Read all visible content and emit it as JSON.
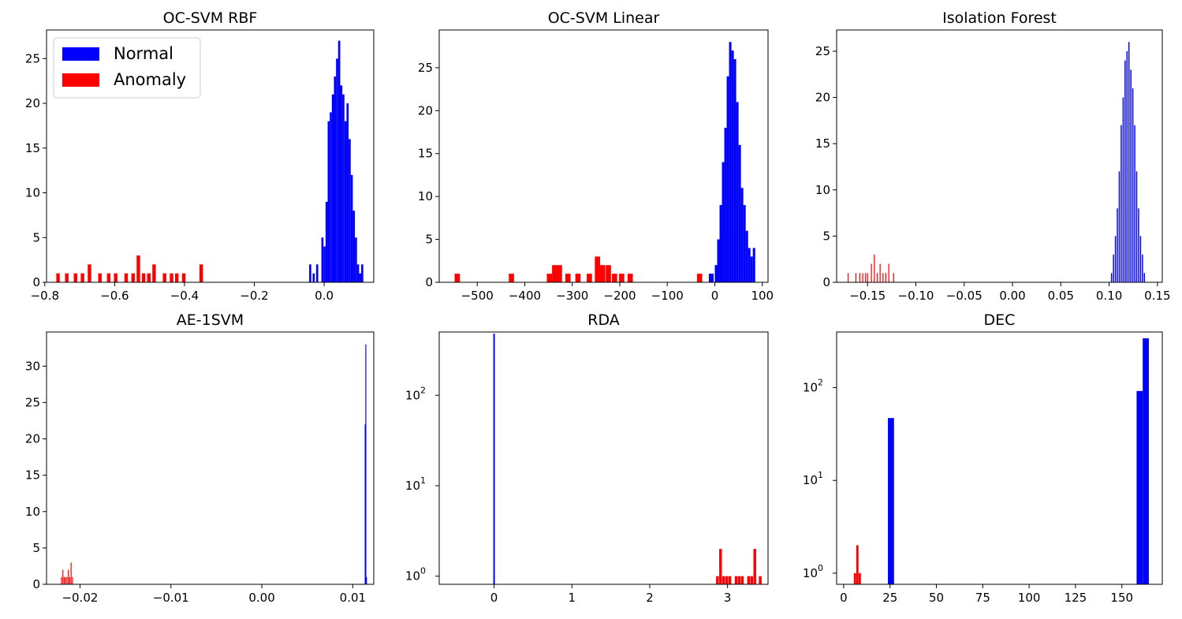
{
  "legend": {
    "items": [
      {
        "label": "Normal",
        "color": "#0000ff"
      },
      {
        "label": "Anomaly",
        "color": "#ff0000"
      }
    ]
  },
  "chart_data": [
    {
      "type": "bar",
      "title": "OC-SVM RBF",
      "xlabel": "",
      "ylabel": "",
      "xlim": [
        -0.795,
        0.142
      ],
      "ylim": [
        0,
        28.2
      ],
      "xticks": [
        -0.8,
        -0.6,
        -0.4,
        -0.2,
        0.0
      ],
      "xtick_labels": [
        "−0.8",
        "−0.6",
        "−0.4",
        "−0.2",
        "0.0"
      ],
      "yticks": [
        0,
        5,
        10,
        15,
        20,
        25
      ],
      "ytick_labels": [
        "0",
        "5",
        "10",
        "15",
        "20",
        "25"
      ],
      "log_y": false,
      "legend": true,
      "legend_position": "upper-left",
      "series": [
        {
          "name": "Normal",
          "color": "#0000ff",
          "bin_width": 0.006,
          "x": [
            -0.04,
            -0.03,
            -0.02,
            -0.005,
            0.001,
            0.007,
            0.013,
            0.019,
            0.025,
            0.031,
            0.037,
            0.043,
            0.049,
            0.055,
            0.061,
            0.067,
            0.073,
            0.079,
            0.085,
            0.091,
            0.097,
            0.103,
            0.109
          ],
          "values": [
            2,
            1,
            2,
            5,
            4,
            9,
            18,
            19,
            21,
            23,
            25,
            27,
            22,
            21,
            18,
            20,
            16,
            12,
            8,
            5,
            2,
            1,
            2
          ]
        },
        {
          "name": "Anomaly",
          "color": "#ff0000",
          "bin_width": 0.01,
          "x": [
            -0.762,
            -0.737,
            -0.712,
            -0.692,
            -0.672,
            -0.642,
            -0.617,
            -0.597,
            -0.567,
            -0.547,
            -0.532,
            -0.517,
            -0.502,
            -0.487,
            -0.457,
            -0.437,
            -0.422,
            -0.402,
            -0.352
          ],
          "values": [
            1,
            1,
            1,
            1,
            2,
            1,
            1,
            1,
            1,
            1,
            3,
            1,
            1,
            2,
            1,
            1,
            1,
            1,
            2
          ]
        }
      ]
    },
    {
      "type": "bar",
      "title": "OC-SVM Linear",
      "xlabel": "",
      "ylabel": "",
      "xlim": [
        -580,
        112
      ],
      "ylim": [
        0,
        29.4
      ],
      "xticks": [
        -500,
        -400,
        -300,
        -200,
        -100,
        0,
        100
      ],
      "xtick_labels": [
        "−500",
        "−400",
        "−300",
        "−200",
        "−100",
        "0",
        "100"
      ],
      "yticks": [
        0,
        5,
        10,
        15,
        20,
        25
      ],
      "ytick_labels": [
        "0",
        "5",
        "10",
        "15",
        "20",
        "25"
      ],
      "log_y": false,
      "legend": false,
      "series": [
        {
          "name": "Normal",
          "color": "#0000ff",
          "bin_width": 5,
          "x": [
            -10,
            -5,
            2.5,
            7.5,
            12.5,
            17.5,
            22.5,
            27.5,
            32.5,
            37.5,
            42.5,
            47.5,
            52.5,
            57.5,
            62.5,
            67.5,
            72.5,
            77.5,
            82.5
          ],
          "values": [
            1,
            1,
            2,
            5,
            9,
            14,
            18,
            24,
            28,
            27,
            26,
            21,
            16,
            11,
            9,
            6,
            4,
            3,
            4
          ]
        },
        {
          "name": "Anomaly",
          "color": "#ff0000",
          "bin_width": 11,
          "x": [
            -542,
            -428,
            -348,
            -337,
            -327,
            -309,
            -288,
            -264,
            -247,
            -236,
            -224,
            -211,
            -196,
            -178,
            -32
          ],
          "values": [
            1,
            1,
            1,
            2,
            2,
            1,
            1,
            1,
            3,
            2,
            2,
            1,
            1,
            1,
            1
          ]
        }
      ]
    },
    {
      "type": "bar",
      "title": "Isolation Forest",
      "xlabel": "",
      "ylabel": "",
      "xlim": [
        -0.182,
        0.155
      ],
      "ylim": [
        0,
        27.3
      ],
      "xticks": [
        -0.15,
        -0.1,
        -0.05,
        0.0,
        0.05,
        0.1,
        0.15
      ],
      "xtick_labels": [
        "−0.15",
        "−0.10",
        "−0.05",
        "0.00",
        "0.05",
        "0.10",
        "0.15"
      ],
      "yticks": [
        0,
        5,
        10,
        15,
        20,
        25
      ],
      "ytick_labels": [
        "0",
        "5",
        "10",
        "15",
        "20",
        "25"
      ],
      "log_y": false,
      "legend": false,
      "series": [
        {
          "name": "Normal",
          "color": "#0000ff",
          "bin_width": 0.0012,
          "x": [
            0.1025,
            0.1045,
            0.1065,
            0.1085,
            0.1105,
            0.1125,
            0.1145,
            0.1165,
            0.1185,
            0.1205,
            0.1225,
            0.1245,
            0.1265,
            0.1285,
            0.1305,
            0.1325,
            0.1345,
            0.1365
          ],
          "values": [
            1,
            3,
            5,
            8,
            12,
            17,
            20,
            24,
            25,
            26,
            23,
            21,
            17,
            12,
            8,
            5,
            3,
            1
          ]
        },
        {
          "name": "Anomaly",
          "color": "#ff0000",
          "bin_width": 0.001,
          "x": [
            -0.17,
            -0.162,
            -0.158,
            -0.155,
            -0.152,
            -0.15,
            -0.146,
            -0.143,
            -0.14,
            -0.137,
            -0.134,
            -0.131,
            -0.128,
            -0.123
          ],
          "values": [
            1,
            1,
            1,
            1,
            1,
            1,
            2,
            3,
            1,
            2,
            1,
            1,
            2,
            1
          ]
        }
      ]
    },
    {
      "type": "bar",
      "title": "AE-1SVM",
      "xlabel": "",
      "ylabel": "",
      "xlim": [
        -0.02368,
        0.01231
      ],
      "ylim": [
        0,
        34.7
      ],
      "xticks": [
        -0.02,
        -0.01,
        0.0,
        0.01
      ],
      "xtick_labels": [
        "−0.02",
        "−0.01",
        "0.00",
        "0.01"
      ],
      "yticks": [
        0,
        5,
        10,
        15,
        20,
        25,
        30
      ],
      "ytick_labels": [
        "0",
        "5",
        "10",
        "15",
        "20",
        "25",
        "30"
      ],
      "log_y": false,
      "legend": false,
      "series": [
        {
          "name": "Normal",
          "color": "#0000ff",
          "bin_width": 3e-05,
          "x": [
            0.01133,
            0.0114,
            0.01147
          ],
          "values": [
            22,
            33,
            1
          ]
        },
        {
          "name": "Anomaly",
          "color": "#ff0000",
          "bin_width": 6e-05,
          "x": [
            -0.02205,
            -0.0219,
            -0.02175,
            -0.0216,
            -0.02145,
            -0.0213,
            -0.02115,
            -0.021,
            -0.02085
          ],
          "values": [
            1,
            2,
            1,
            1,
            1,
            2,
            1,
            3,
            1
          ]
        }
      ]
    },
    {
      "type": "bar",
      "title": "RDA",
      "xlabel": "",
      "ylabel": "",
      "xlim": [
        -0.705,
        3.52
      ],
      "log_y": true,
      "ylim_log": [
        -0.09,
        2.7
      ],
      "xticks": [
        0,
        1,
        2,
        3
      ],
      "xtick_labels": [
        "0",
        "1",
        "2",
        "3"
      ],
      "yticks": [
        1,
        10,
        100
      ],
      "ytick_labels": [
        "10",
        "10",
        "10"
      ],
      "ytick_exponents": [
        "0",
        "1",
        "2"
      ],
      "legend": false,
      "series": [
        {
          "name": "Normal",
          "color": "#0000ff",
          "bin_width": 0.02,
          "x": [
            0.0
          ],
          "values": [
            480
          ]
        },
        {
          "name": "Anomaly",
          "color": "#ff0000",
          "bin_width": 0.035,
          "x": [
            2.87,
            2.91,
            2.95,
            2.99,
            3.03,
            3.11,
            3.15,
            3.19,
            3.27,
            3.31,
            3.35,
            3.42
          ],
          "values": [
            1,
            2,
            1,
            1,
            1,
            1,
            1,
            1,
            1,
            1,
            2,
            1
          ]
        }
      ]
    },
    {
      "type": "bar",
      "title": "DEC",
      "xlabel": "",
      "ylabel": "",
      "xlim": [
        -3.8,
        171.8
      ],
      "log_y": true,
      "ylim_log": [
        -0.12,
        2.6
      ],
      "xticks": [
        0,
        25,
        50,
        75,
        100,
        125,
        150
      ],
      "xtick_labels": [
        "0",
        "25",
        "50",
        "75",
        "100",
        "125",
        "150"
      ],
      "yticks": [
        1,
        10,
        100
      ],
      "ytick_labels": [
        "10",
        "10",
        "10"
      ],
      "ytick_exponents": [
        "0",
        "1",
        "2"
      ],
      "legend": false,
      "series": [
        {
          "name": "Normal",
          "color": "#0000ff",
          "bin_width": 3.3,
          "x": [
            25.5,
            159.6,
            162.9
          ],
          "values": [
            47,
            92,
            340
          ]
        },
        {
          "name": "Anomaly",
          "color": "#ff0000",
          "bin_width": 1.2,
          "x": [
            6.1,
            7.4,
            8.7
          ],
          "values": [
            1,
            2,
            1
          ]
        }
      ]
    }
  ]
}
